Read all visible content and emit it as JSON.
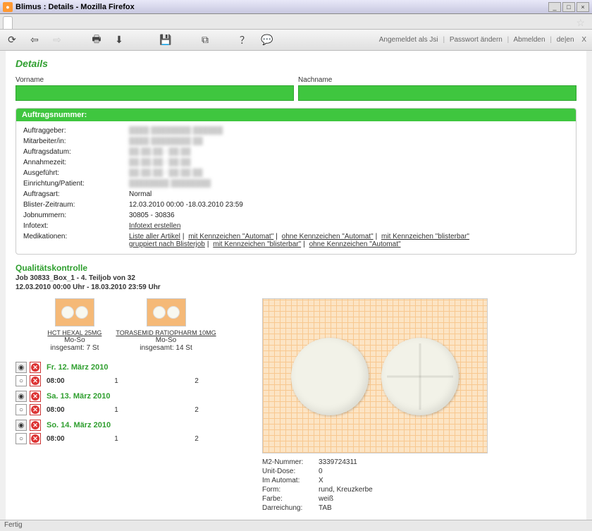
{
  "browser": {
    "title": "Blimus : Details - Mozilla Firefox",
    "tab_label": " ",
    "status": "Fertig"
  },
  "toolbar_right": {
    "logged_in": "Angemeldet als Jsi",
    "change_pw": "Passwort ändern",
    "logout": "Abmelden",
    "lang": "de|en",
    "close": "X"
  },
  "page": {
    "title": "Details",
    "vorname_label": "Vorname",
    "nachname_label": "Nachname"
  },
  "panel": {
    "header": "Auftragsnummer:",
    "rows": {
      "auftraggeber": "Auftraggeber:",
      "mitarbeiter": "Mitarbeiter/in:",
      "auftragsdatum": "Auftragsdatum:",
      "annahmezeit": "Annahmezeit:",
      "ausgefuehrt": "Ausgeführt:",
      "einrichtung": "Einrichtung/Patient:",
      "auftragsart": "Auftragsart:",
      "auftragsart_val": "Normal",
      "blister": "Blister-Zeitraum:",
      "blister_val": "12.03.2010 00:00 -18.03.2010 23:59",
      "jobnummern": "Jobnummern:",
      "jobnummern_val": "30805 - 30836",
      "infotext": "Infotext:",
      "infotext_link": "Infotext erstellen",
      "medikationen": "Medikationen:"
    },
    "med_links": {
      "l1": "Liste aller Artikel",
      "l2": "mit Kennzeichen \"Automat\"",
      "l3": "ohne Kennzeichen \"Automat\"",
      "l4": "mit Kennzeichen \"blisterbar\"",
      "l5": "gruppiert nach Blisterjob",
      "l6": "mit Kennzeichen \"blisterbar\"",
      "l7": "ohne Kennzeichen \"Automat\""
    }
  },
  "qc": {
    "title": "Qualitätskontrolle",
    "sub1": "Job 30833_Box_1 - 4. Teiljob von 32",
    "sub2": "12.03.2010 00:00 Uhr - 18.03.2010 23:59 Uhr",
    "meds": [
      {
        "name": "HCT HEXAL 25MG",
        "days": "Mo-So",
        "total": "insgesamt: 7 St"
      },
      {
        "name": "TORASEMID RATIOPHARM 10MG",
        "days": "Mo-So",
        "total": "insgesamt: 14 St"
      }
    ],
    "days": [
      {
        "title": "Fr. 12. März 2010",
        "time": "08:00",
        "c1": "1",
        "c2": "2"
      },
      {
        "title": "Sa. 13. März 2010",
        "time": "08:00",
        "c1": "1",
        "c2": "2"
      },
      {
        "title": "So. 14. März 2010",
        "time": "08:00",
        "c1": "1",
        "c2": "2"
      }
    ],
    "detail": {
      "m2_k": "M2-Nummer:",
      "m2_v": "3339724311",
      "ud_k": "Unit-Dose:",
      "ud_v": "0",
      "ia_k": "Im Automat:",
      "ia_v": "X",
      "form_k": "Form:",
      "form_v": "rund, Kreuzkerbe",
      "farbe_k": "Farbe:",
      "farbe_v": "weiß",
      "darr_k": "Darreichung:",
      "darr_v": "TAB"
    }
  }
}
